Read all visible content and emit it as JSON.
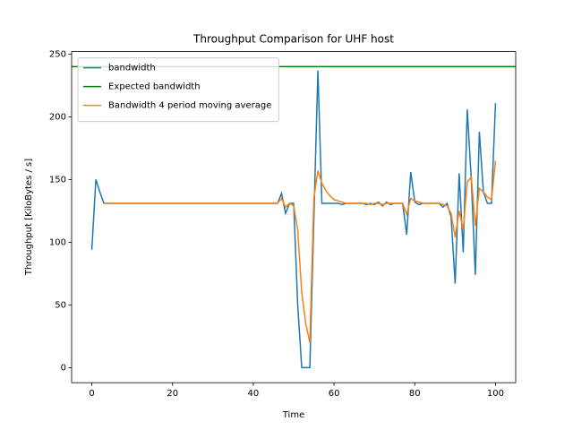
{
  "chart_data": {
    "type": "line",
    "title": "Throughput Comparison for UHF host",
    "xlabel": "Time",
    "ylabel": "Throughput [KiloBytes / s]",
    "xlim": [
      -5,
      105
    ],
    "ylim": [
      -12,
      252
    ],
    "xticks": [
      0,
      20,
      40,
      60,
      80,
      100
    ],
    "yticks": [
      0,
      50,
      100,
      150,
      200,
      250
    ],
    "legend": "upper left",
    "x": [
      0,
      1,
      2,
      3,
      4,
      5,
      6,
      7,
      8,
      9,
      10,
      11,
      12,
      13,
      14,
      15,
      16,
      17,
      18,
      19,
      20,
      21,
      22,
      23,
      24,
      25,
      26,
      27,
      28,
      29,
      30,
      31,
      32,
      33,
      34,
      35,
      36,
      37,
      38,
      39,
      40,
      41,
      42,
      43,
      44,
      45,
      46,
      47,
      48,
      49,
      50,
      51,
      52,
      53,
      54,
      55,
      56,
      57,
      58,
      59,
      60,
      61,
      62,
      63,
      64,
      65,
      66,
      67,
      68,
      69,
      70,
      71,
      72,
      73,
      74,
      75,
      76,
      77,
      78,
      79,
      80,
      81,
      82,
      83,
      84,
      85,
      86,
      87,
      88,
      89,
      90,
      91,
      92,
      93,
      94,
      95,
      96,
      97,
      98,
      99,
      100
    ],
    "series": [
      {
        "name": "bandwidth",
        "color": "#1f77b4",
        "values": [
          94,
          150,
          140,
          131,
          131,
          131,
          131,
          131,
          131,
          131,
          131,
          131,
          131,
          131,
          131,
          131,
          131,
          131,
          131,
          131,
          131,
          131,
          131,
          131,
          131,
          131,
          131,
          131,
          131,
          131,
          131,
          131,
          131,
          131,
          131,
          131,
          131,
          131,
          131,
          131,
          131,
          131,
          131,
          131,
          131,
          131,
          131,
          139,
          123,
          131,
          131,
          50,
          0,
          0,
          0,
          118,
          237,
          131,
          131,
          131,
          131,
          131,
          130,
          131,
          131,
          131,
          131,
          131,
          130,
          131,
          130,
          132,
          129,
          132,
          130,
          131,
          131,
          131,
          106,
          156,
          132,
          130,
          131,
          131,
          131,
          131,
          131,
          128,
          131,
          120,
          67,
          155,
          92,
          206,
          150,
          74,
          188,
          140,
          131,
          131,
          211
        ]
      },
      {
        "name": "Expected bandwidth",
        "color": "#008000",
        "value": 240
      },
      {
        "name": "Bandwidth 4 period moving average",
        "color": "#ff7f0e",
        "values": [
          null,
          null,
          null,
          131,
          131,
          131,
          131,
          131,
          131,
          131,
          131,
          131,
          131,
          131,
          131,
          131,
          131,
          131,
          131,
          131,
          131,
          131,
          131,
          131,
          131,
          131,
          131,
          131,
          131,
          131,
          131,
          131,
          131,
          131,
          131,
          131,
          131,
          131,
          131,
          131,
          131,
          131,
          131,
          131,
          131,
          131,
          131,
          135,
          128,
          131,
          129,
          110,
          60,
          35,
          20,
          135,
          157,
          147,
          141,
          137,
          134,
          133,
          132,
          131,
          131,
          131,
          131,
          131,
          131,
          130,
          131,
          131,
          130,
          131,
          131,
          131,
          131,
          131,
          122,
          135,
          133,
          132,
          131,
          131,
          131,
          131,
          131,
          130,
          129,
          123,
          104,
          125,
          110,
          148,
          152,
          113,
          143,
          140,
          136,
          134,
          165
        ]
      }
    ]
  }
}
